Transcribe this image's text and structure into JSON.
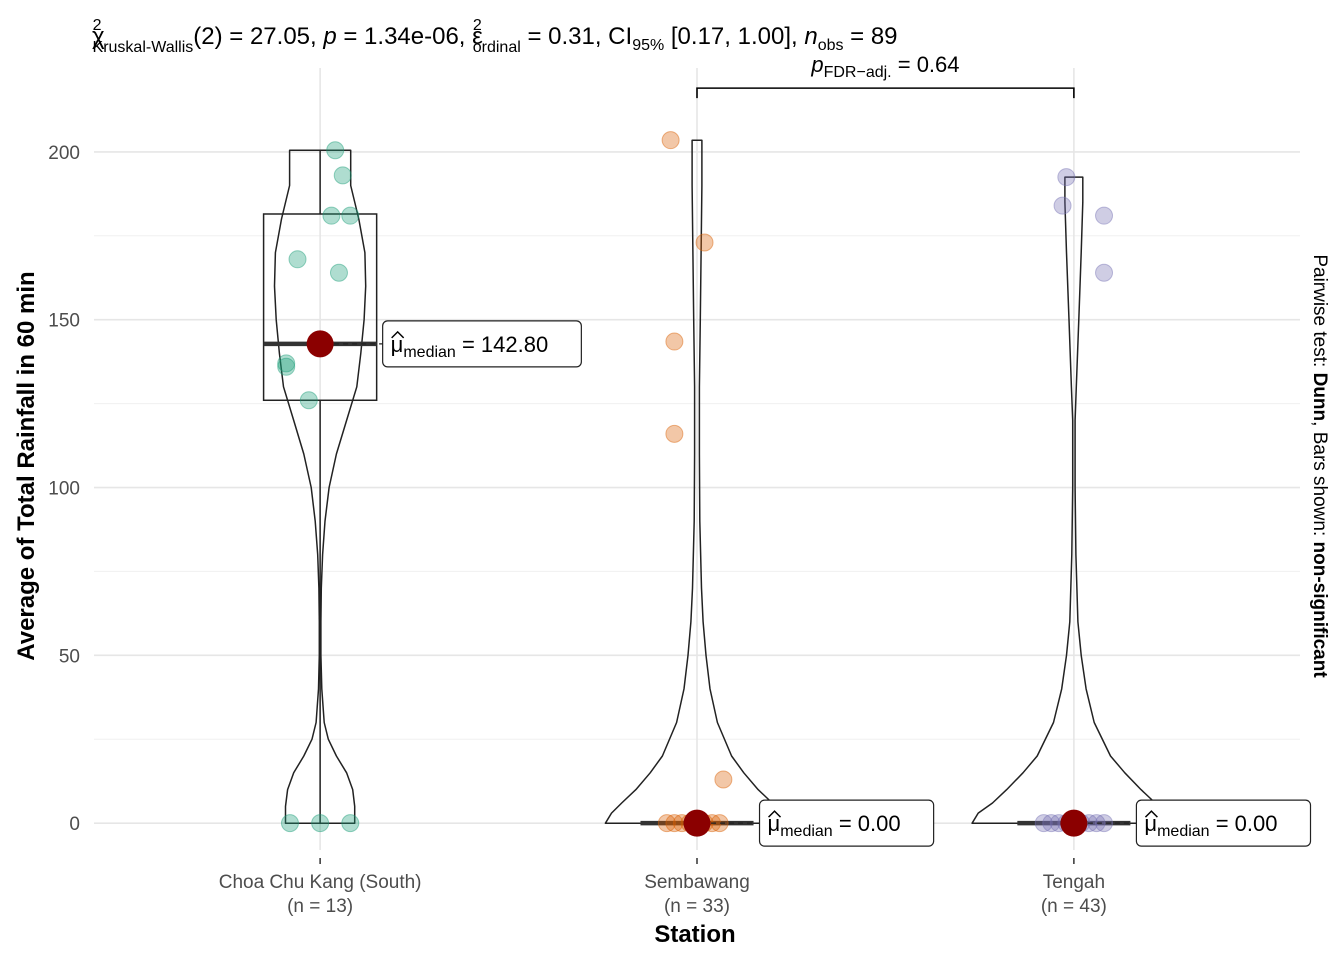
{
  "chart_data": {
    "type": "violin-box",
    "title": "χ²Kruskal-Wallis(2) = 27.05, p = 1.34e-06, ε̂²ordinal = 0.31, CI95% [0.17, 1.00], nobs = 89",
    "title_parts": {
      "stat_symbol": "χ",
      "stat_sup": "2",
      "stat_sub": "Kruskal-Wallis",
      "df": "(2) = 27.05, ",
      "p_symbol": "p",
      "p_value": " = 1.34e-06, ",
      "effect_symbol": "ε",
      "effect_sup": "2",
      "effect_sub": "ordinal",
      "effect_value": " = 0.31, CI",
      "ci_sub": "95%",
      "ci_value": " [0.17, 1.00], ",
      "n_symbol": "n",
      "n_sub": "obs",
      "n_value": " = 89"
    },
    "xlabel": "Station",
    "ylabel": "Average of Total Rainfall in 60 min",
    "ylim": [
      -8,
      225
    ],
    "yticks": [
      0,
      50,
      100,
      150,
      200
    ],
    "side_caption": {
      "prefix": "Pairwise test: ",
      "test": "Dunn",
      "middle": ", Bars shown: ",
      "shown": "non-significant"
    },
    "median_label": {
      "symbol": "μ",
      "sub": "median"
    },
    "pairwise": {
      "from": 1,
      "to": 2,
      "symbol": "p",
      "sub": "FDR−adj.",
      "value": " = 0.64",
      "y": 219
    },
    "categories": [
      {
        "name": "Choa Chu Kang (South)",
        "n_label": "(n = 13)",
        "color": "#1B9E77",
        "median": 142.8,
        "median_text": " = 142.80",
        "box": {
          "q1": 126,
          "q3": 181.5,
          "lower": 0,
          "upper": 200.5
        },
        "points": [
          [
            0,
            0
          ],
          [
            -0.08,
            0
          ],
          [
            0.08,
            0
          ],
          [
            -0.09,
            136
          ],
          [
            -0.09,
            137
          ],
          [
            -0.03,
            126
          ],
          [
            -0.06,
            168
          ],
          [
            0.05,
            164
          ],
          [
            0.03,
            181
          ],
          [
            0.08,
            181
          ],
          [
            0.06,
            193
          ],
          [
            0.04,
            200.5
          ],
          [
            0.01,
            142
          ]
        ],
        "violin": [
          [
            0,
            0.085
          ],
          [
            5,
            0.085
          ],
          [
            10,
            0.08
          ],
          [
            15,
            0.065
          ],
          [
            20,
            0.04
          ],
          [
            25,
            0.02
          ],
          [
            30,
            0.01
          ],
          [
            40,
            0.004
          ],
          [
            50,
            0.002
          ],
          [
            60,
            0.002
          ],
          [
            70,
            0.003
          ],
          [
            80,
            0.006
          ],
          [
            90,
            0.012
          ],
          [
            100,
            0.022
          ],
          [
            110,
            0.04
          ],
          [
            120,
            0.065
          ],
          [
            130,
            0.09
          ],
          [
            140,
            0.1
          ],
          [
            150,
            0.108
          ],
          [
            160,
            0.112
          ],
          [
            170,
            0.11
          ],
          [
            180,
            0.095
          ],
          [
            190,
            0.075
          ],
          [
            200.5,
            0.075
          ]
        ]
      },
      {
        "name": "Sembawang",
        "n_label": "(n = 33)",
        "color": "#D95F02",
        "median": 0,
        "median_text": " = 0.00",
        "box": {
          "q1": 0,
          "q3": 0,
          "lower": 0,
          "upper": 0
        },
        "points": [
          [
            -0.08,
            0
          ],
          [
            -0.06,
            0
          ],
          [
            -0.04,
            0
          ],
          [
            -0.02,
            0
          ],
          [
            0,
            0
          ],
          [
            0.02,
            0
          ],
          [
            0.04,
            0
          ],
          [
            0.06,
            0
          ],
          [
            0.07,
            13
          ],
          [
            -0.06,
            116
          ],
          [
            -0.06,
            143.5
          ],
          [
            0.02,
            173
          ],
          [
            -0.07,
            203.5
          ]
        ],
        "violin": [
          [
            0,
            0.225
          ],
          [
            3,
            0.21
          ],
          [
            6,
            0.185
          ],
          [
            10,
            0.15
          ],
          [
            15,
            0.115
          ],
          [
            20,
            0.085
          ],
          [
            30,
            0.05
          ],
          [
            40,
            0.032
          ],
          [
            50,
            0.022
          ],
          [
            60,
            0.015
          ],
          [
            70,
            0.011
          ],
          [
            90,
            0.007
          ],
          [
            110,
            0.006
          ],
          [
            130,
            0.006
          ],
          [
            150,
            0.008
          ],
          [
            170,
            0.01
          ],
          [
            190,
            0.012
          ],
          [
            203.5,
            0.012
          ]
        ]
      },
      {
        "name": "Tengah",
        "n_label": "(n = 43)",
        "color": "#7570B3",
        "median": 0,
        "median_text": " = 0.00",
        "box": {
          "q1": 0,
          "q3": 0,
          "lower": 0,
          "upper": 0
        },
        "points": [
          [
            -0.08,
            0
          ],
          [
            -0.06,
            0
          ],
          [
            -0.04,
            0
          ],
          [
            -0.02,
            0
          ],
          [
            0,
            0
          ],
          [
            0.02,
            0
          ],
          [
            0.04,
            0
          ],
          [
            0.06,
            0
          ],
          [
            0.08,
            0
          ],
          [
            -0.02,
            192.5
          ],
          [
            -0.03,
            184
          ],
          [
            0.08,
            181
          ],
          [
            0.08,
            164
          ]
        ],
        "violin": [
          [
            0,
            0.25
          ],
          [
            3,
            0.235
          ],
          [
            6,
            0.2
          ],
          [
            10,
            0.165
          ],
          [
            15,
            0.125
          ],
          [
            20,
            0.09
          ],
          [
            30,
            0.05
          ],
          [
            40,
            0.03
          ],
          [
            50,
            0.018
          ],
          [
            60,
            0.01
          ],
          [
            80,
            0.005
          ],
          [
            100,
            0.003
          ],
          [
            120,
            0.003
          ],
          [
            130,
            0.006
          ],
          [
            150,
            0.012
          ],
          [
            170,
            0.018
          ],
          [
            185,
            0.022
          ],
          [
            192.5,
            0.022
          ]
        ]
      }
    ]
  }
}
